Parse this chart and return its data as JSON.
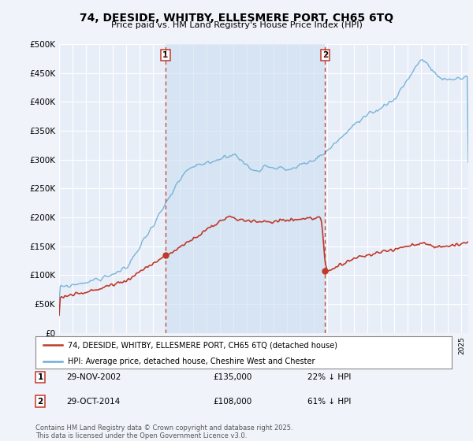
{
  "title": "74, DEESIDE, WHITBY, ELLESMERE PORT, CH65 6TQ",
  "subtitle": "Price paid vs. HM Land Registry's House Price Index (HPI)",
  "ylabel_ticks": [
    "£0",
    "£50K",
    "£100K",
    "£150K",
    "£200K",
    "£250K",
    "£300K",
    "£350K",
    "£400K",
    "£450K",
    "£500K"
  ],
  "ytick_values": [
    0,
    50000,
    100000,
    150000,
    200000,
    250000,
    300000,
    350000,
    400000,
    450000,
    500000
  ],
  "ylim": [
    0,
    500000
  ],
  "hpi_color": "#6baed6",
  "price_color": "#c0392b",
  "vline_color": "#c0392b",
  "shade_color": "#ddeeff",
  "marker1_date_num": 2002.91,
  "marker2_date_num": 2014.83,
  "marker1_price": 135000,
  "marker2_price": 108000,
  "marker1_date_str": "29-NOV-2002",
  "marker2_date_str": "29-OCT-2014",
  "marker1_pct": "22% ↓ HPI",
  "marker2_pct": "61% ↓ HPI",
  "legend_line1": "74, DEESIDE, WHITBY, ELLESMERE PORT, CH65 6TQ (detached house)",
  "legend_line2": "HPI: Average price, detached house, Cheshire West and Chester",
  "footnote": "Contains HM Land Registry data © Crown copyright and database right 2025.\nThis data is licensed under the Open Government Licence v3.0.",
  "background_color": "#f0f4fa",
  "plot_bg_color": "#e8eef8",
  "grid_color": "#ffffff",
  "xmin": 1995.0,
  "xmax": 2025.5
}
